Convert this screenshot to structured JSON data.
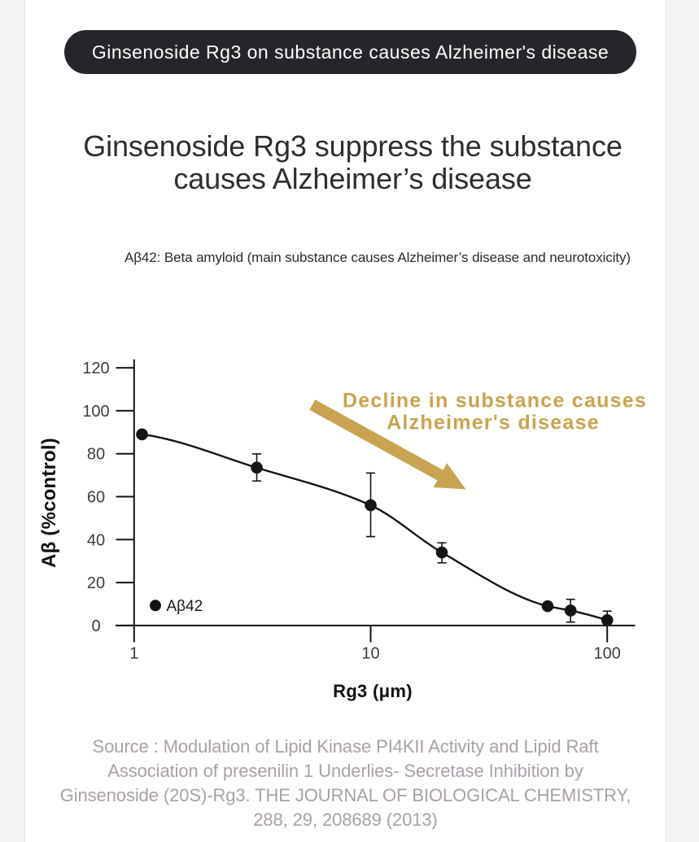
{
  "page": {
    "background_color": "#f5f5f4",
    "card_background_color": "#ffffff"
  },
  "badge": {
    "label": "Ginsenoside Rg3 on substance causes Alzheimer's disease",
    "background_color": "#26262a",
    "text_color": "#ffffff"
  },
  "heading": {
    "lines": [
      "Ginsenoside Rg3 suppress the substance",
      "causes Alzheimer’s disease"
    ],
    "color": "#2e2e2e"
  },
  "subtitle": {
    "text": "Aβ42: Beta amyloid (main substance causes Alzheimer’s disease and neurotoxicity)",
    "color": "#2b2b2b"
  },
  "chart_data": {
    "type": "scatter",
    "title": "",
    "xlabel": "Rg3 (μm)",
    "ylabel": "Aβ (%control)",
    "x_scale": "log",
    "x_ticks": [
      1,
      10,
      100
    ],
    "x_range": [
      1,
      130
    ],
    "y_ticks": [
      0,
      20,
      40,
      60,
      80,
      100,
      120
    ],
    "y_range": [
      0,
      124
    ],
    "grid": "off",
    "series": [
      {
        "name": "Aβ42",
        "x": [
          1.08,
          3.3,
          10,
          20,
          56,
          70,
          100
        ],
        "y": [
          89,
          73.5,
          56,
          34,
          9,
          7,
          2.5
        ],
        "err_plus": [
          0,
          6.4,
          15,
          4.5,
          0,
          5.2,
          4.2
        ],
        "err_minus": [
          0,
          6.2,
          14.6,
          4.8,
          0,
          5.4,
          4.2
        ],
        "color": "#141414",
        "marker": "circle"
      }
    ],
    "legend": {
      "label": "Aβ42",
      "position": "lower-left"
    },
    "annotation": {
      "lines": [
        "Decline in substance causes",
        "Alzheimer's disease"
      ],
      "color": "#c9a351",
      "arrow_color": "#c9a351"
    }
  },
  "source": {
    "lines": [
      "Source : Modulation of Lipid Kinase PI4KII Activity and Lipid Raft",
      "Association of presenilin 1 Underlies- Secretase Inhibition by",
      "Ginsenoside (20S)-Rg3. THE JOURNAL OF BIOLOGICAL CHEMISTRY,",
      "288, 29, 208689 (2013)"
    ],
    "color": "#a9a1a9"
  }
}
